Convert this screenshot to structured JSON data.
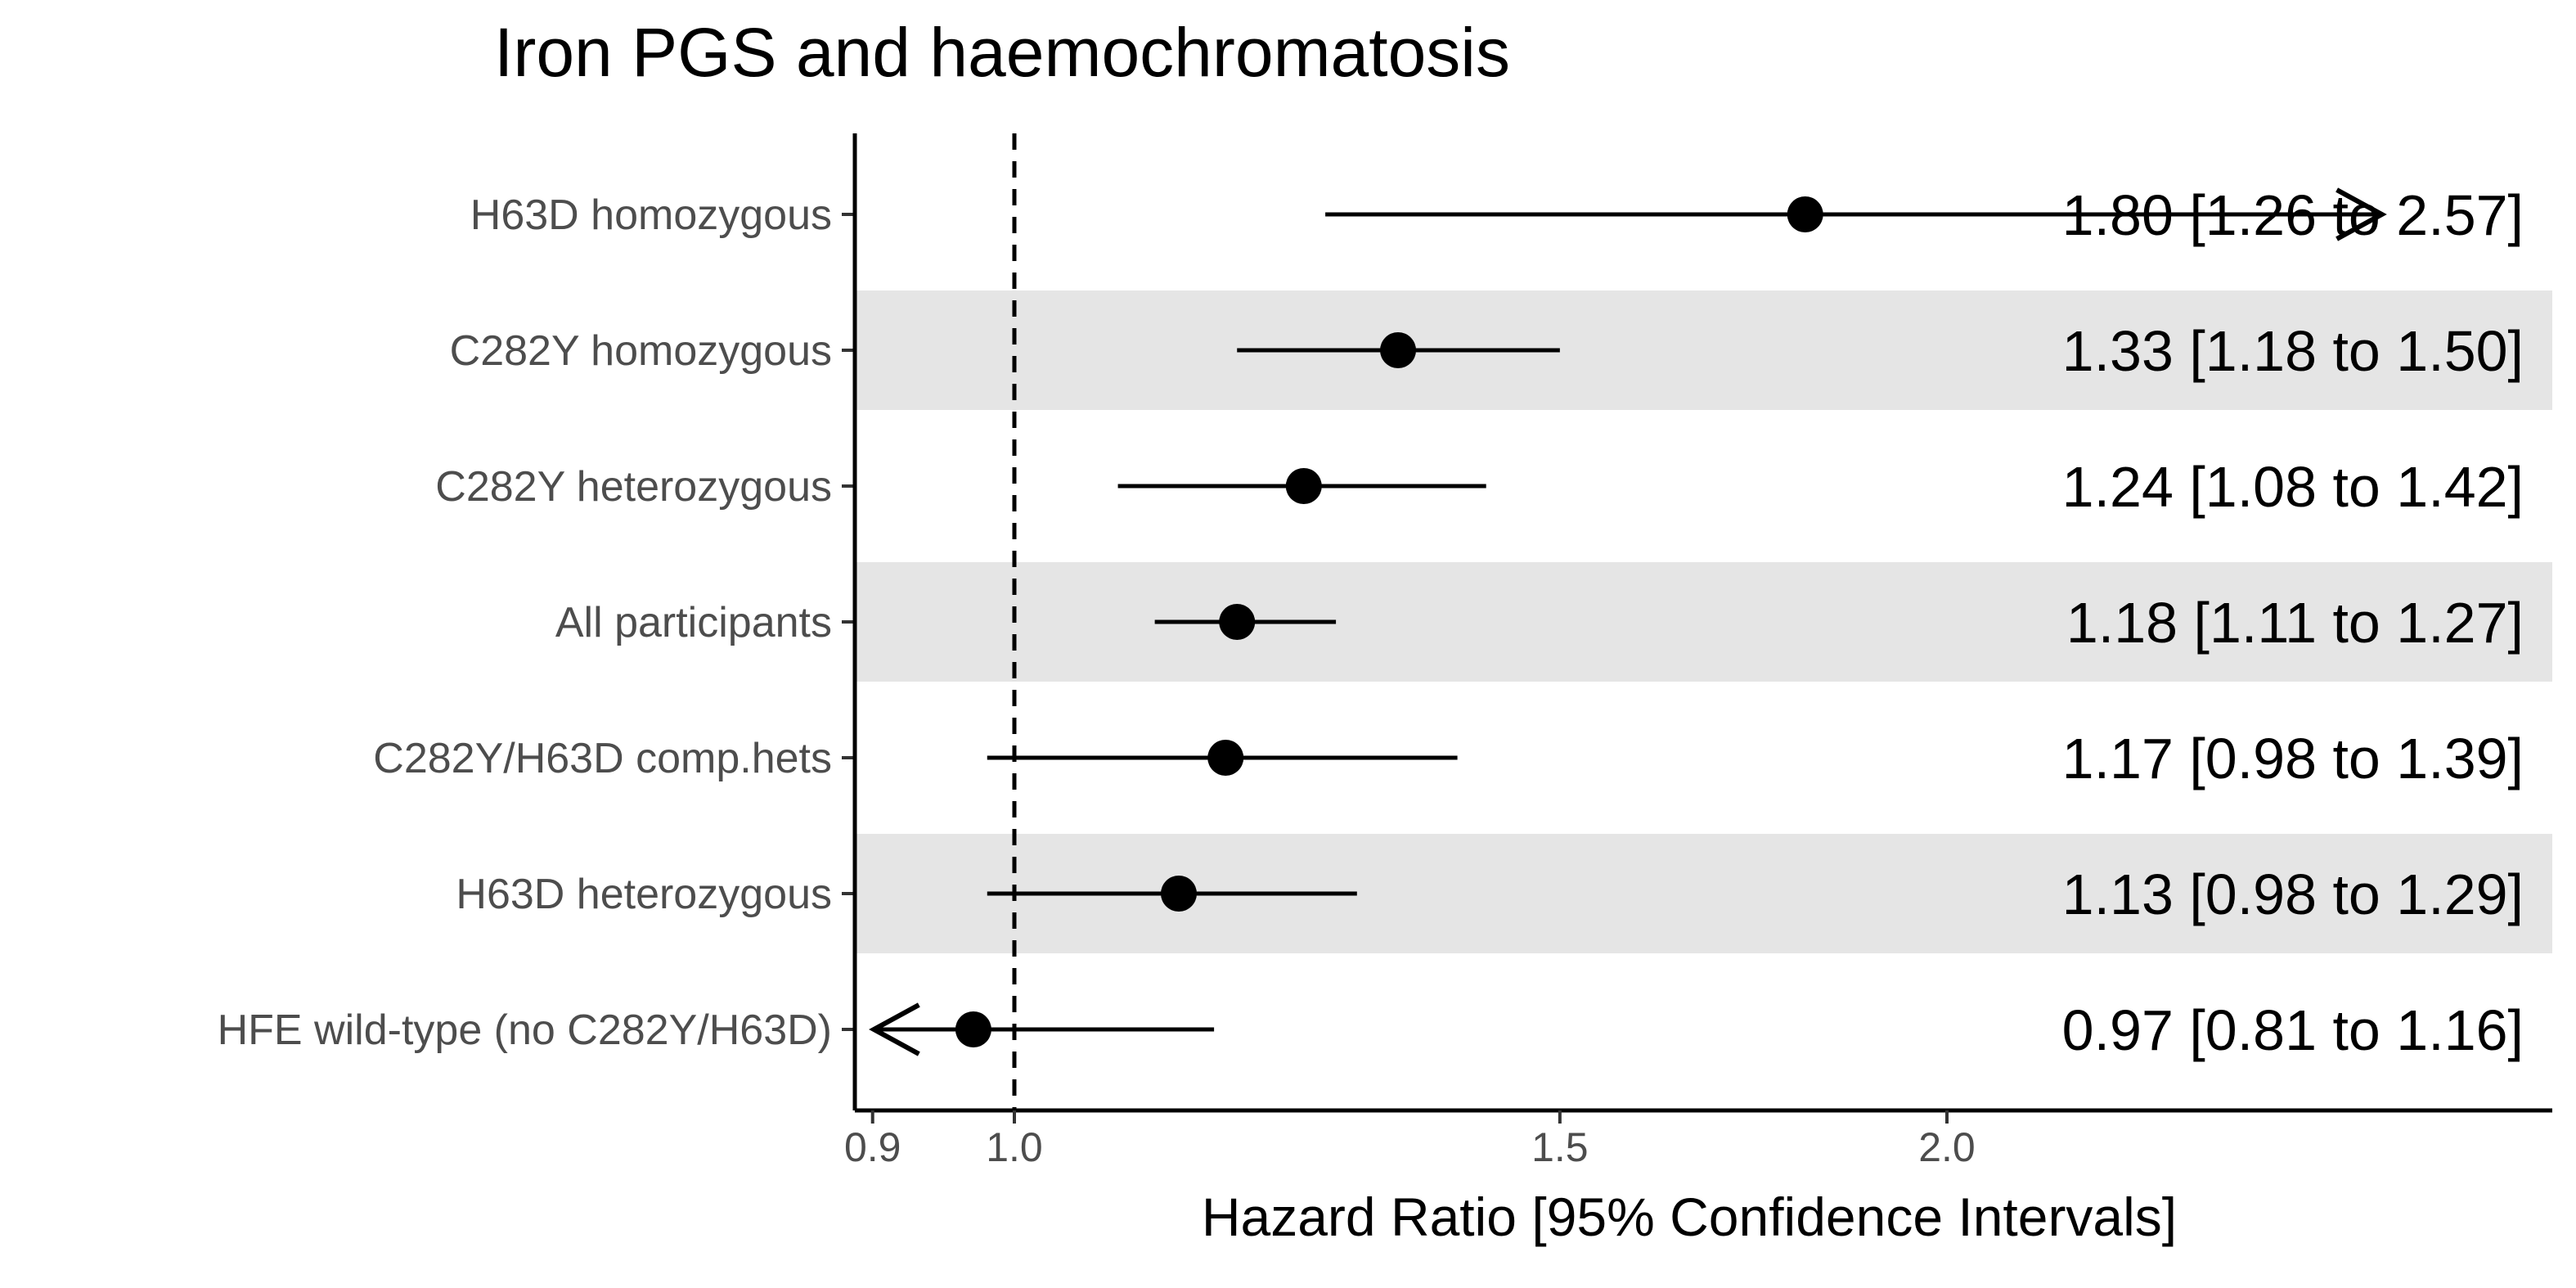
{
  "chart_data": {
    "type": "forest",
    "title": "Iron PGS and haemochromatosis",
    "xlabel": "Hazard Ratio [95% Confidence Intervals]",
    "ylabel": "",
    "xscale": "log",
    "xlim": [
      0.89,
      2.78
    ],
    "xticks": [
      0.9,
      1.0,
      1.5,
      2.0
    ],
    "xtick_labels": [
      "0.9",
      "1.0",
      "1.5",
      "2.0"
    ],
    "reference_line": 1.0,
    "rows": [
      {
        "label": "H63D homozygous",
        "hr": 1.8,
        "lower": 1.26,
        "upper": 2.57,
        "text": "1.80 [1.26 to 2.57]",
        "arrow": "right",
        "shaded": false
      },
      {
        "label": "C282Y homozygous",
        "hr": 1.33,
        "lower": 1.18,
        "upper": 1.5,
        "text": "1.33 [1.18 to 1.50]",
        "arrow": "",
        "shaded": true
      },
      {
        "label": "C282Y heterozygous",
        "hr": 1.24,
        "lower": 1.08,
        "upper": 1.42,
        "text": "1.24 [1.08 to 1.42]",
        "arrow": "",
        "shaded": false
      },
      {
        "label": "All participants",
        "hr": 1.18,
        "lower": 1.11,
        "upper": 1.27,
        "text": "1.18 [1.11 to 1.27]",
        "arrow": "",
        "shaded": true
      },
      {
        "label": "C282Y/H63D comp.hets",
        "hr": 1.17,
        "lower": 0.98,
        "upper": 1.39,
        "text": "1.17 [0.98 to 1.39]",
        "arrow": "",
        "shaded": false
      },
      {
        "label": "H63D heterozygous",
        "hr": 1.13,
        "lower": 0.98,
        "upper": 1.29,
        "text": "1.13 [0.98 to 1.29]",
        "arrow": "",
        "shaded": true
      },
      {
        "label": "HFE wild-type (no C282Y/H63D)",
        "hr": 0.97,
        "lower": 0.81,
        "upper": 1.16,
        "text": "0.97 [0.81 to 1.16]",
        "arrow": "left",
        "shaded": false
      }
    ],
    "colors": {
      "point": "#000000",
      "band": "#e5e5e5",
      "tick_text": "#4d4d4d"
    }
  }
}
